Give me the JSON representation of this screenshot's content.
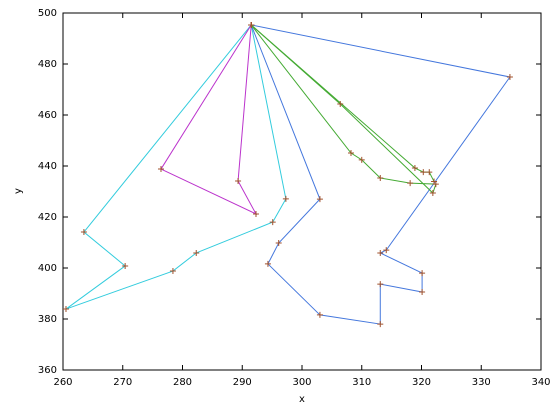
{
  "chart_data": {
    "type": "line",
    "x_label": "x",
    "y_label": "y",
    "xlim": [
      260,
      340
    ],
    "xticks": [
      260,
      270,
      280,
      290,
      300,
      310,
      320,
      330,
      340
    ],
    "ylim": [
      360,
      500
    ],
    "yticks": [
      360,
      380,
      400,
      420,
      440,
      460,
      480,
      500
    ],
    "grid": false,
    "marker": "+",
    "marker_color": "#a0522d",
    "series": [
      {
        "color": "#33ccdd",
        "x": [
          291.5,
          263.5,
          270.4,
          260.5,
          278.4,
          282.3,
          295.1,
          297.3,
          291.5
        ],
        "y": [
          495.3,
          414.1,
          400.8,
          383.9,
          398.8,
          405.9,
          418.0,
          427.1,
          495.3
        ]
      },
      {
        "color": "#4477dd",
        "x": [
          291.5,
          334.8,
          314.1,
          313.1,
          320.1,
          320.1,
          313.1,
          313.1,
          303.0,
          294.3,
          296.1,
          303.0,
          291.5
        ],
        "y": [
          495.3,
          474.9,
          407.0,
          405.9,
          398.0,
          390.6,
          393.7,
          378.0,
          381.6,
          401.6,
          409.8,
          427.0,
          495.3
        ]
      },
      {
        "color": "#bb33cc",
        "x": [
          291.5,
          276.4,
          292.3,
          289.3,
          291.5
        ],
        "y": [
          495.3,
          438.8,
          421.2,
          434.1,
          495.3
        ]
      },
      {
        "color": "#44aa33",
        "x": [
          291.5,
          306.4,
          321.9,
          322.4,
          318.1,
          313.1,
          310.0,
          308.2,
          291.5
        ],
        "y": [
          495.3,
          464.3,
          429.4,
          432.9,
          433.3,
          435.3,
          442.4,
          445.1,
          495.3
        ]
      },
      {
        "color": "#44aa33",
        "x": [
          291.5,
          318.9,
          320.3,
          321.3,
          322.1
        ],
        "y": [
          495.3,
          439.2,
          437.6,
          437.6,
          433.9
        ]
      }
    ]
  }
}
